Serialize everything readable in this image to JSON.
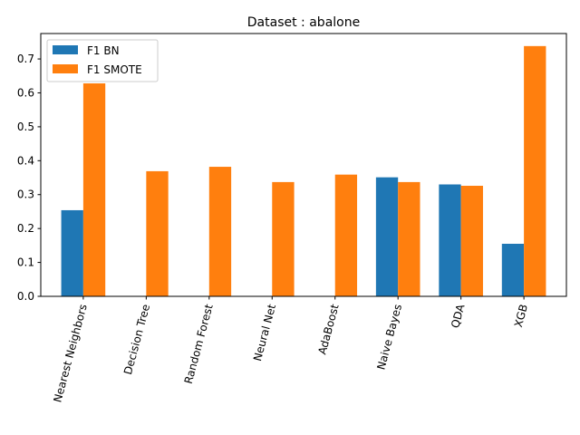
{
  "chart_data": {
    "type": "bar",
    "title": "Dataset : abalone",
    "xlabel": "",
    "ylabel": "",
    "categories": [
      "Nearest Neighbors",
      "Decision Tree",
      "Random Forest",
      "Neural Net",
      "AdaBoost",
      "Naive Bayes",
      "QDA",
      "XGB"
    ],
    "series": [
      {
        "name": "F1 BN",
        "color": "#1f77b4",
        "values": [
          0.254,
          0.0,
          0.0,
          0.0,
          0.0,
          0.351,
          0.33,
          0.155
        ]
      },
      {
        "name": "F1 SMOTE",
        "color": "#ff7f0e",
        "values": [
          0.628,
          0.369,
          0.382,
          0.337,
          0.359,
          0.337,
          0.326,
          0.738
        ]
      }
    ],
    "ylim": [
      0,
      0.775
    ],
    "yticks": [
      0.0,
      0.1,
      0.2,
      0.3,
      0.4,
      0.5,
      0.6,
      0.7
    ],
    "ytick_labels": [
      "0.0",
      "0.1",
      "0.2",
      "0.3",
      "0.4",
      "0.5",
      "0.6",
      "0.7"
    ],
    "grid": false,
    "legend_position": "top-left"
  }
}
